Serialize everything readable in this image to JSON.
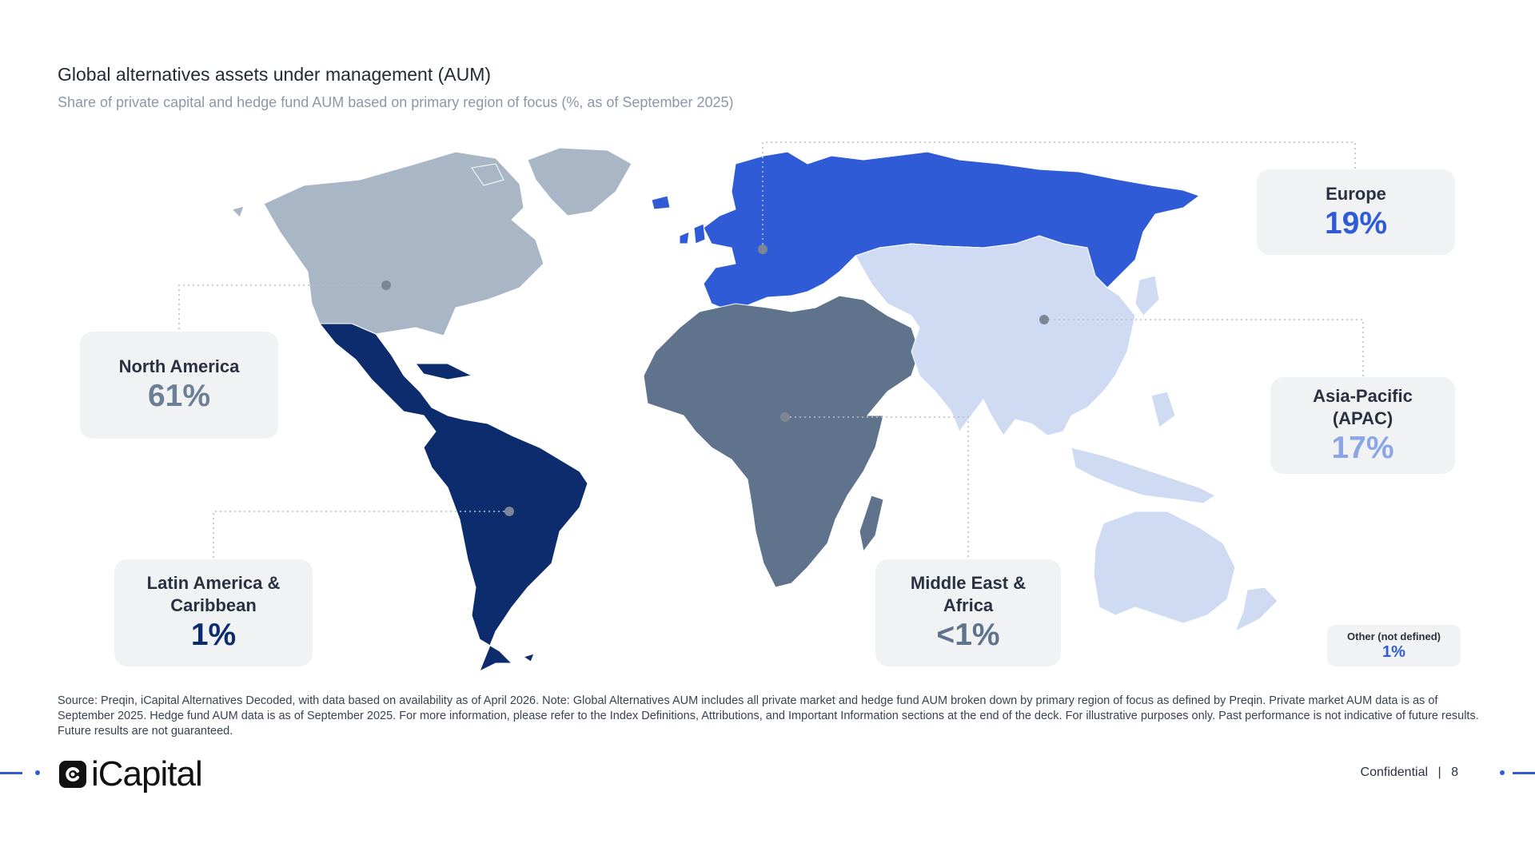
{
  "header": {
    "title": "Global alternatives assets under management (AUM)",
    "subtitle": "Share of private capital and hedge fund AUM based on primary region of focus (%, as of September 2025)"
  },
  "regions": [
    {
      "id": "north-america",
      "name": "North America",
      "share": "61%",
      "color": "#a8b6c6",
      "share_color": "#6b7f96"
    },
    {
      "id": "latin-america",
      "name": "Latin America & Caribbean",
      "share": "1%",
      "color": "#0d2c6e",
      "share_color": "#0d2c6e"
    },
    {
      "id": "europe",
      "name": "Europe",
      "share": "19%",
      "color": "#2f5bd6",
      "share_color": "#2f5bd6"
    },
    {
      "id": "middle-east-africa",
      "name": "Middle East & Africa",
      "share": "<1%",
      "color": "#60738c",
      "share_color": "#60738c"
    },
    {
      "id": "asia-pacific",
      "name": "Asia-Pacific (APAC)",
      "share": "17%",
      "color": "#cfdbf3",
      "share_color": "#8aa6e6"
    }
  ],
  "other": {
    "name": "Other (not defined)",
    "share": "1%",
    "share_color": "#2f5bd6"
  },
  "source_note": "Source: Preqin, iCapital Alternatives Decoded, with data based on availability as of April 2026. Note: Global Alternatives AUM includes all private market and hedge fund AUM broken down by primary region of focus as defined by Preqin. Private market AUM data is as of September 2025. Hedge fund AUM data is as of September 2025. For more information, please refer to the Index Definitions, Attributions, and Important Information sections at the end of the deck. For illustrative purposes only. Past performance is not indicative of future results. Future results are not guaranteed.",
  "footer": {
    "brand": "iCapital",
    "confidential": "Confidential",
    "separator": "|",
    "page_number": "8"
  }
}
